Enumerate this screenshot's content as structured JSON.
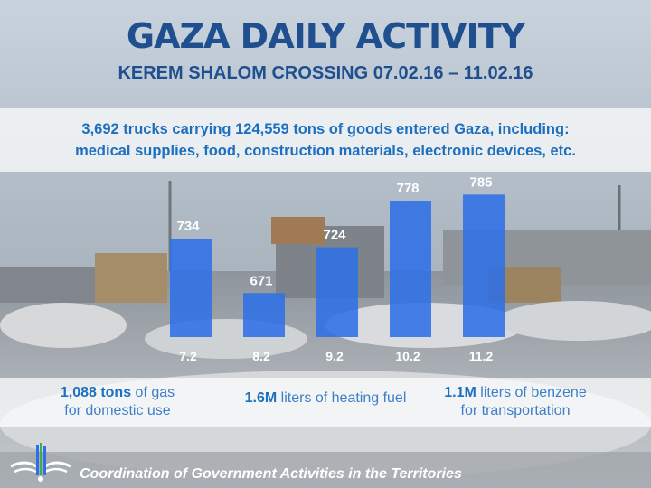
{
  "header": {
    "title": "GAZA DAILY ACTIVITY",
    "subtitle": "KEREM SHALOM CROSSING 07.02.16 – 11.02.16"
  },
  "banner": {
    "line1": "3,692 trucks carrying 124,559 tons of goods entered Gaza, including:",
    "line2": "medical supplies, food, construction materials, electronic devices, etc."
  },
  "chart_data": {
    "type": "bar",
    "title": "",
    "xlabel": "",
    "ylabel": "",
    "categories": [
      "7.2",
      "8.2",
      "9.2",
      "10.2",
      "11.2"
    ],
    "values": [
      734,
      671,
      724,
      778,
      785
    ],
    "data_labels": [
      "734",
      "671",
      "724",
      "778",
      "785"
    ],
    "ylim": [
      620,
      800
    ]
  },
  "stats": [
    {
      "bold": "1,088 tons",
      "text1": " of gas",
      "text2": "for domestic use"
    },
    {
      "bold": "1.6M",
      "text1": " liters of heating fuel",
      "text2": ""
    },
    {
      "bold": "1.1M",
      "text1": " liters of benzene",
      "text2": "for transportation"
    }
  ],
  "footer": {
    "org": "Coordination of Government Activities in the Territories"
  },
  "colors": {
    "bar": "#2f6fe6",
    "title": "#1f4f8f",
    "accent": "#1d6fbf"
  }
}
